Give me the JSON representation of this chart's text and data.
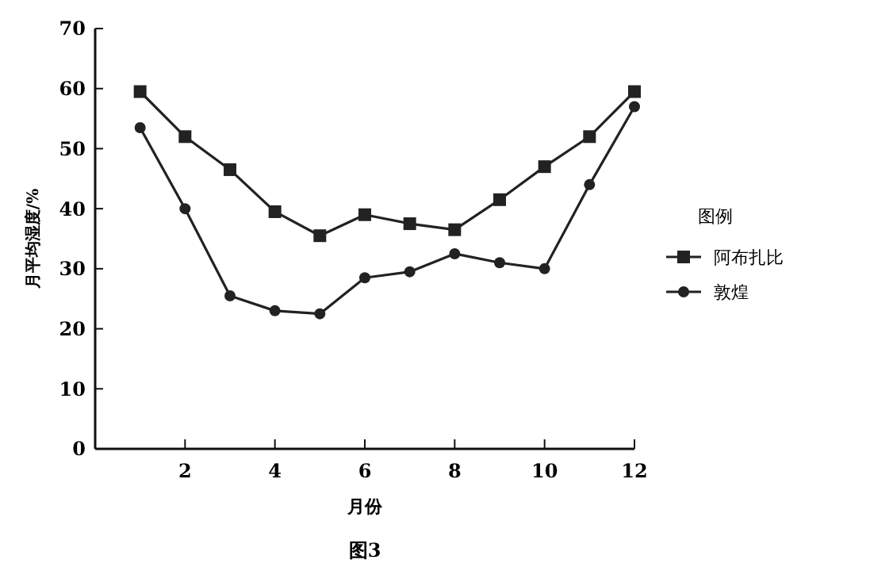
{
  "chart_data": {
    "type": "line",
    "xlabel": "月份",
    "ylabel": "月平均湿度/%",
    "legend_title": "图例",
    "legend": "right",
    "line_style": "solid",
    "grid": false,
    "x": [
      1,
      2,
      3,
      4,
      5,
      6,
      7,
      8,
      9,
      10,
      11,
      12
    ],
    "xlim": [
      0,
      12
    ],
    "xticks": [
      2,
      4,
      6,
      8,
      10,
      12
    ],
    "ylim": [
      0,
      70
    ],
    "yticks": [
      0,
      10,
      20,
      30,
      40,
      50,
      60,
      70
    ],
    "series": [
      {
        "name": "阿布扎比",
        "color": "#222222",
        "marker": "square",
        "values": [
          59.5,
          52,
          46.5,
          39.5,
          35.5,
          39,
          37.5,
          36.5,
          41.5,
          47,
          52,
          59.5
        ]
      },
      {
        "name": "敦煌",
        "color": "#222222",
        "marker": "circle",
        "values": [
          53.5,
          40,
          25.5,
          23,
          22.5,
          28.5,
          29.5,
          32.5,
          31,
          30,
          44,
          57
        ]
      }
    ],
    "annotations": [
      "图3"
    ]
  }
}
